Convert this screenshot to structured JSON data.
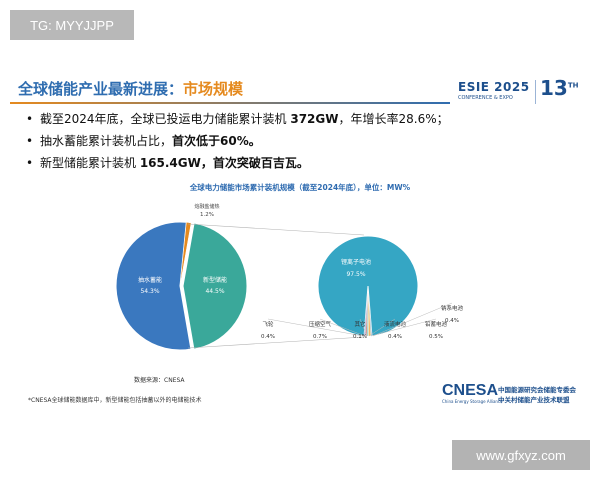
{
  "watermarks": {
    "top": "TG: MYYJJPP",
    "bottom": "www.gfxyz.com"
  },
  "header": {
    "title_prefix": "全球储能产业最新进展：",
    "title_suffix": "市场规模",
    "esie_text": "ESIE 2025",
    "esie_sub": "CONFERENCE & EXPO",
    "esie_number": "13",
    "esie_number_sup": "TH"
  },
  "bullets": [
    {
      "pre": "截至2024年底，全球已投运电力储能累计装机 ",
      "bold": "372GW",
      "post": "，年增长率28.6%；"
    },
    {
      "pre": "抽水蓄能累计装机占比，",
      "bold": "首次低于60%。",
      "post": ""
    },
    {
      "pre": "新型储能累计装机 ",
      "bold": "165.4GW，首次突破百吉瓦。",
      "post": ""
    }
  ],
  "source": "数据来源：CNESA",
  "footnote": "*CNESA全球储能数据库中，新型储能包括抽蓄以外的电储能技术",
  "logo": {
    "big": "CNESA",
    "small": "China Energy Storage Alliance",
    "cn1": "中国能源研究会储能专委会",
    "cn2": "中关村储能产业技术联盟"
  },
  "colors": {
    "pumped": "#3a78bf",
    "new": "#3aa89a",
    "thermal": "#e58a1f",
    "liion": "#35a6c4",
    "title": "#2f6db0"
  },
  "chart_data": [
    {
      "type": "pie",
      "title": "全球电力储能市场累计装机规模（截至2024年底），单位：MW%",
      "slices": [
        {
          "label": "抽水蓄能",
          "value": 54.3,
          "value_label": "54.3%"
        },
        {
          "label": "新型储能",
          "value": 44.5,
          "value_label": "44.5%"
        },
        {
          "label": "熔融盐储热",
          "value": 1.2,
          "value_label": "1.2%"
        }
      ]
    },
    {
      "type": "pie",
      "slices": [
        {
          "label": "锂离子电池",
          "value": 97.5,
          "value_label": "97.5%"
        },
        {
          "label": "飞轮",
          "value": 0.4,
          "value_label": "0.4%"
        },
        {
          "label": "压缩空气",
          "value": 0.7,
          "value_label": "0.7%"
        },
        {
          "label": "其它",
          "value": 0.1,
          "value_label": "0.1%"
        },
        {
          "label": "液流电池",
          "value": 0.4,
          "value_label": "0.4%"
        },
        {
          "label": "铅蓄电池",
          "value": 0.5,
          "value_label": "0.5%"
        },
        {
          "label": "钠系电池",
          "value": 0.4,
          "value_label": "0.4%"
        }
      ]
    }
  ]
}
